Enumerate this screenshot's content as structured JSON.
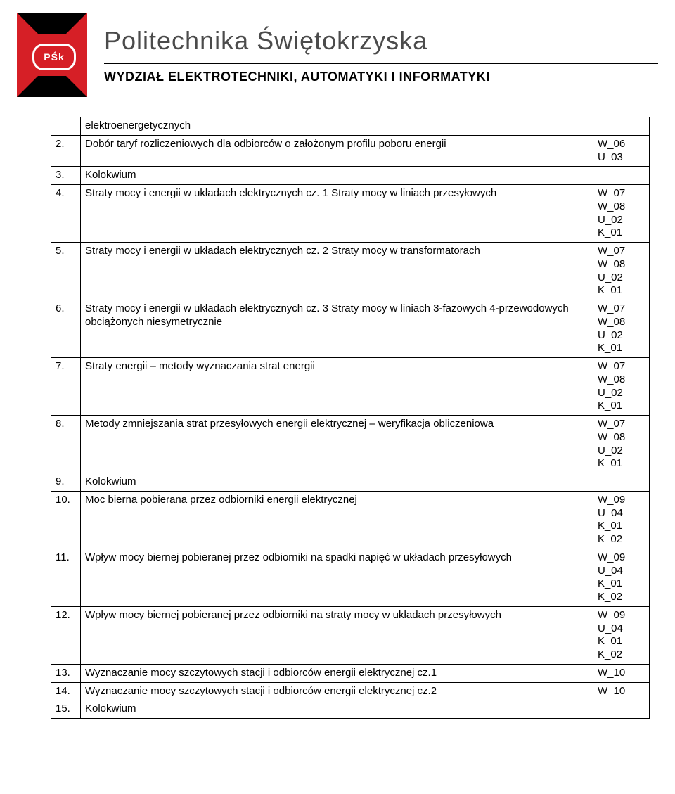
{
  "header": {
    "logo_text": "PŚk",
    "university": "Politechnika Świętokrzyska",
    "faculty": "WYDZIAŁ ELEKTROTECHNIKI, AUTOMATYKI I INFORMATYKI"
  },
  "colors": {
    "logo_red": "#d61f26",
    "text_gray": "#4b4b4b",
    "border": "#000000"
  },
  "rows": [
    {
      "num": "",
      "desc": "elektroenergetycznych",
      "codes": ""
    },
    {
      "num": "2.",
      "desc": "Dobór taryf rozliczeniowych dla odbiorców o założonym profilu poboru energii",
      "codes": "W_06\nU_03"
    },
    {
      "num": "3.",
      "desc": "Kolokwium",
      "codes": ""
    },
    {
      "num": "4.",
      "desc": "Straty mocy i energii w układach elektrycznych cz. 1 Straty mocy w liniach przesyłowych",
      "codes": "W_07\nW_08\nU_02\nK_01"
    },
    {
      "num": "5.",
      "desc": "Straty mocy i energii w układach elektrycznych cz. 2 Straty mocy w transformatorach",
      "codes": "W_07\nW_08\nU_02\nK_01"
    },
    {
      "num": "6.",
      "desc": "Straty mocy i energii w układach elektrycznych cz. 3 Straty mocy w liniach 3-fazowych 4-przewodowych obciążonych niesymetrycznie",
      "codes": "W_07\nW_08\nU_02\nK_01"
    },
    {
      "num": "7.",
      "desc": "Straty energii – metody wyznaczania strat energii",
      "codes": "W_07\nW_08\nU_02\nK_01"
    },
    {
      "num": "8.",
      "desc": "Metody zmniejszania strat przesyłowych energii elektrycznej – weryfikacja obliczeniowa",
      "codes": "W_07\nW_08\nU_02\nK_01"
    },
    {
      "num": "9.",
      "desc": "Kolokwium",
      "codes": ""
    },
    {
      "num": "10.",
      "desc": "Moc bierna pobierana przez odbiorniki energii elektrycznej",
      "codes": "W_09\nU_04\nK_01\nK_02"
    },
    {
      "num": "11.",
      "desc": "Wpływ mocy biernej pobieranej przez odbiorniki na spadki napięć w układach przesyłowych",
      "codes": "W_09\nU_04\nK_01\nK_02"
    },
    {
      "num": "12.",
      "desc": "Wpływ mocy biernej pobieranej przez odbiorniki na straty mocy w układach przesyłowych",
      "codes": "W_09\nU_04\nK_01\nK_02"
    },
    {
      "num": "13.",
      "desc": "Wyznaczanie mocy szczytowych stacji i odbiorców energii elektrycznej cz.1",
      "codes": "W_10"
    },
    {
      "num": "14.",
      "desc": "Wyznaczanie mocy szczytowych stacji i odbiorców energii elektrycznej cz.2",
      "codes": "W_10"
    },
    {
      "num": "15.",
      "desc": "Kolokwium",
      "codes": ""
    }
  ]
}
